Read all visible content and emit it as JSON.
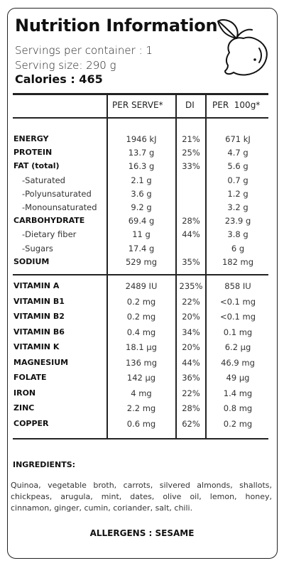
{
  "title": "Nutrition Information",
  "servings": "Servings per container : 1",
  "serving_size": "Serving size: 290 g",
  "calories": "Calories : 465",
  "columns": [
    "PER SERVE*",
    "DI",
    "PER  100g*"
  ],
  "logo_icon": "lemon-icon",
  "rows_group1": [
    {
      "label": "ENERGY",
      "style": "bold",
      "per_serve": "1946 kJ",
      "di": "21%",
      "per_100g": "671 kJ"
    },
    {
      "label": "PROTEIN",
      "style": "bold",
      "per_serve": "13.7 g",
      "di": "25%",
      "per_100g": "4.7 g"
    },
    {
      "label": "FAT (total)",
      "style": "bold",
      "per_serve": "16.3 g",
      "di": "33%",
      "per_100g": "5.6 g"
    },
    {
      "label": "-Saturated",
      "style": "sub",
      "per_serve": "2.1 g",
      "di": "",
      "per_100g": "0.7 g"
    },
    {
      "label": "-Polyunsaturated",
      "style": "sub",
      "per_serve": "3.6 g",
      "di": "",
      "per_100g": "1.2 g"
    },
    {
      "label": "-Monounsaturated",
      "style": "sub",
      "per_serve": "9.2 g",
      "di": "",
      "per_100g": "3.2 g"
    },
    {
      "label": "CARBOHYDRATE",
      "style": "bold",
      "per_serve": "69.4 g",
      "di": "28%",
      "per_100g": "23.9 g"
    },
    {
      "label": "-Dietary fiber",
      "style": "sub",
      "per_serve": "11 g",
      "di": "44%",
      "per_100g": "3.8 g"
    },
    {
      "label": "-Sugars",
      "style": "sub",
      "per_serve": "17.4 g",
      "di": "",
      "per_100g": "6 g"
    },
    {
      "label": "SODIUM",
      "style": "bold",
      "per_serve": "529 mg",
      "di": "35%",
      "per_100g": "182 mg"
    }
  ],
  "rows_group2": [
    {
      "label": "VITAMIN A",
      "style": "bold",
      "per_serve": "2489 IU",
      "di": "235%",
      "per_100g": "858 IU"
    },
    {
      "label": "VITAMIN B1",
      "style": "bold",
      "per_serve": "0.2 mg",
      "di": "22%",
      "per_100g": "<0.1 mg"
    },
    {
      "label": "VITAMIN B2",
      "style": "bold",
      "per_serve": "0.2 mg",
      "di": "20%",
      "per_100g": "<0.1 mg"
    },
    {
      "label": "VITAMIN B6",
      "style": "bold",
      "per_serve": "0.4 mg",
      "di": "34%",
      "per_100g": "0.1 mg"
    },
    {
      "label": "VITAMIN K",
      "style": "bold",
      "per_serve": "18.1 µg",
      "di": "20%",
      "per_100g": "6.2 µg"
    },
    {
      "label": "MAGNESIUM",
      "style": "bold",
      "per_serve": "136 mg",
      "di": "44%",
      "per_100g": "46.9 mg"
    },
    {
      "label": "FOLATE",
      "style": "bold",
      "per_serve": "142 µg",
      "di": "36%",
      "per_100g": "49 µg"
    },
    {
      "label": "IRON",
      "style": "bold",
      "per_serve": "4 mg",
      "di": "22%",
      "per_100g": "1.4 mg"
    },
    {
      "label": "ZINC",
      "style": "bold",
      "per_serve": "2.2 mg",
      "di": "28%",
      "per_100g": "0.8 mg"
    },
    {
      "label": "COPPER",
      "style": "bold",
      "per_serve": "0.6 mg",
      "di": "62%",
      "per_100g": "0.2 mg"
    }
  ],
  "ingredients_heading": "INGREDIENTS:",
  "ingredients": "Quinoa, vegetable broth, carrots, silvered almonds, shallots, chickpeas, arugula, mint, dates, olive oil, lemon, honey, cinnamon, ginger, cumin, coriander, salt, chili.",
  "allergens": "ALLERGENS : SESAME"
}
